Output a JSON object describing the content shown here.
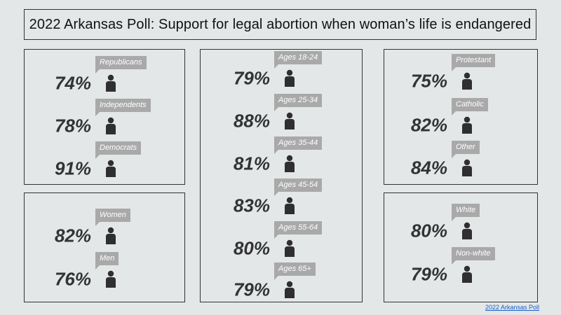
{
  "title": "2022 Arkansas Poll: Support for legal abortion when woman’s life is endangered",
  "source_link": "2022 Arkansas Poll",
  "colors": {
    "background": "#e3e7e8",
    "tag": "#a9a9a9",
    "percent": "#333333",
    "icon": "#2f2f2f",
    "link": "#1a5fc9"
  },
  "icon": "person-icon",
  "chart_data": [
    {
      "type": "table",
      "group": "party",
      "categories": [
        "Republicans",
        "Independents",
        "Democrats"
      ],
      "values": [
        74,
        78,
        91
      ],
      "unit": "%"
    },
    {
      "type": "table",
      "group": "gender",
      "categories": [
        "Women",
        "Men"
      ],
      "values": [
        82,
        76
      ],
      "unit": "%"
    },
    {
      "type": "table",
      "group": "age",
      "categories": [
        "Ages 18-24",
        "Ages 25-34",
        "Ages 35-44",
        "Ages 45-54",
        "Ages 55-64",
        "Ages 65+"
      ],
      "values": [
        79,
        88,
        81,
        83,
        80,
        79
      ],
      "unit": "%"
    },
    {
      "type": "table",
      "group": "religion",
      "categories": [
        "Protestant",
        "Catholic",
        "Other"
      ],
      "values": [
        75,
        82,
        84
      ],
      "unit": "%"
    },
    {
      "type": "table",
      "group": "race",
      "categories": [
        "White",
        "Non-white"
      ],
      "values": [
        80,
        79
      ],
      "unit": "%"
    }
  ]
}
